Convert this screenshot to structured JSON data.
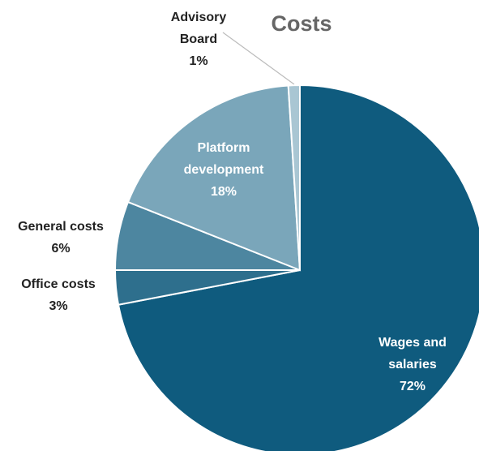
{
  "chart_data": {
    "type": "pie",
    "title": "Costs",
    "categories": [
      "Wages and salaries",
      "Office costs",
      "General costs",
      "Platform development",
      "Advisory Board"
    ],
    "values": [
      72,
      3,
      6,
      18,
      1
    ],
    "value_labels": [
      "72%",
      "3%",
      "6%",
      "18%",
      "1%"
    ],
    "colors": [
      "#0f5b7e",
      "#2e6f8d",
      "#4d86a0",
      "#7aa6ba",
      "#a9c6d3"
    ]
  }
}
